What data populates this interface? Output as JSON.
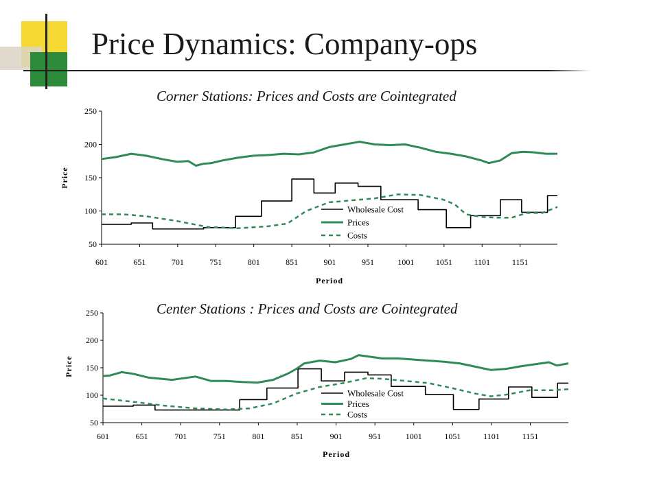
{
  "title": "Price Dynamics: Company-ops",
  "colors": {
    "wholesale": "#000000",
    "prices": "#2e8b57",
    "costs": "#2e8b57"
  },
  "chart_data": [
    {
      "type": "line",
      "title": "Corner Stations: Prices and Costs are Cointegrated",
      "xlabel": "Period",
      "ylabel": "Price",
      "xlim": [
        601,
        1200
      ],
      "ylim": [
        50,
        250
      ],
      "yticks": [
        50,
        100,
        150,
        200,
        250
      ],
      "xticks": [
        601,
        651,
        701,
        751,
        801,
        851,
        901,
        951,
        1001,
        1051,
        1101,
        1151
      ],
      "grid": false,
      "legend": "center-right",
      "series": [
        {
          "name": "Wholesale Cost",
          "style": "step-solid",
          "x": [
            601,
            640,
            640,
            668,
            668,
            735,
            735,
            777,
            777,
            811,
            811,
            851,
            851,
            880,
            880,
            908,
            908,
            938,
            938,
            968,
            968,
            1017,
            1017,
            1054,
            1054,
            1086,
            1086,
            1125,
            1125,
            1153,
            1153,
            1187,
            1187,
            1200
          ],
          "y": [
            80,
            80,
            82,
            82,
            73,
            73,
            75,
            75,
            92,
            92,
            115,
            115,
            148,
            148,
            127,
            127,
            142,
            142,
            137,
            137,
            117,
            117,
            102,
            102,
            75,
            75,
            93,
            93,
            117,
            117,
            98,
            98,
            123,
            123
          ]
        },
        {
          "name": "Prices",
          "style": "solid",
          "x": [
            601,
            620,
            640,
            660,
            680,
            700,
            715,
            725,
            735,
            745,
            760,
            780,
            800,
            820,
            840,
            860,
            880,
            900,
            920,
            940,
            960,
            980,
            1000,
            1020,
            1040,
            1060,
            1080,
            1100,
            1110,
            1125,
            1140,
            1155,
            1170,
            1185,
            1200
          ],
          "y": [
            178,
            181,
            186,
            183,
            178,
            174,
            175,
            168,
            171,
            172,
            176,
            180,
            183,
            184,
            186,
            185,
            188,
            196,
            200,
            204,
            200,
            199,
            200,
            195,
            189,
            186,
            182,
            176,
            172,
            176,
            187,
            189,
            188,
            186,
            186
          ]
        },
        {
          "name": "Costs",
          "style": "dashed",
          "x": [
            601,
            630,
            660,
            700,
            740,
            780,
            820,
            845,
            870,
            900,
            930,
            960,
            990,
            1020,
            1050,
            1065,
            1080,
            1100,
            1120,
            1140,
            1160,
            1180,
            1200
          ],
          "y": [
            95,
            95,
            92,
            85,
            76,
            74,
            77,
            81,
            100,
            113,
            116,
            119,
            125,
            124,
            117,
            110,
            95,
            91,
            90,
            90,
            97,
            97,
            106
          ]
        }
      ]
    },
    {
      "type": "line",
      "title": "Center Stations : Prices and Costs are Cointegrated",
      "xlabel": "Period",
      "ylabel": "Price",
      "xlim": [
        601,
        1200
      ],
      "ylim": [
        50,
        250
      ],
      "yticks": [
        50,
        100,
        150,
        200,
        250
      ],
      "xticks": [
        601,
        651,
        701,
        751,
        801,
        851,
        901,
        951,
        1001,
        1051,
        1101,
        1151
      ],
      "grid": false,
      "legend": "center-right",
      "series": [
        {
          "name": "Wholesale Cost",
          "style": "step-solid",
          "x": [
            601,
            640,
            640,
            668,
            668,
            777,
            777,
            812,
            812,
            852,
            852,
            882,
            882,
            912,
            912,
            942,
            942,
            972,
            972,
            1016,
            1016,
            1052,
            1052,
            1085,
            1085,
            1123,
            1123,
            1153,
            1153,
            1186,
            1186,
            1200
          ],
          "y": [
            80,
            80,
            82,
            82,
            73,
            73,
            92,
            92,
            113,
            113,
            148,
            148,
            126,
            126,
            142,
            142,
            137,
            137,
            116,
            116,
            101,
            101,
            74,
            74,
            93,
            93,
            115,
            115,
            96,
            96,
            122,
            122
          ]
        },
        {
          "name": "Prices",
          "style": "solid",
          "x": [
            601,
            610,
            625,
            640,
            660,
            690,
            720,
            740,
            760,
            780,
            800,
            820,
            840,
            850,
            860,
            880,
            900,
            920,
            930,
            945,
            960,
            980,
            1000,
            1020,
            1040,
            1060,
            1080,
            1100,
            1120,
            1140,
            1160,
            1175,
            1185,
            1200
          ],
          "y": [
            135,
            136,
            142,
            139,
            132,
            128,
            134,
            126,
            126,
            124,
            123,
            128,
            140,
            148,
            158,
            163,
            160,
            166,
            173,
            170,
            167,
            167,
            165,
            163,
            161,
            158,
            152,
            146,
            148,
            153,
            157,
            160,
            154,
            158
          ]
        },
        {
          "name": "Costs",
          "style": "dashed",
          "x": [
            601,
            640,
            680,
            720,
            760,
            790,
            820,
            850,
            880,
            910,
            940,
            960,
            990,
            1020,
            1050,
            1080,
            1100,
            1120,
            1150,
            1180,
            1200
          ],
          "y": [
            94,
            88,
            81,
            76,
            74,
            76,
            85,
            103,
            115,
            122,
            131,
            130,
            126,
            122,
            113,
            103,
            98,
            101,
            109,
            109,
            111
          ]
        }
      ]
    }
  ]
}
